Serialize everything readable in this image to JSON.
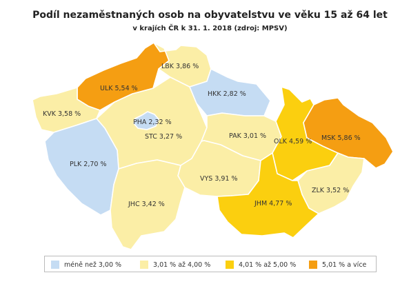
{
  "title": "Podíl nezaměstnaných osob na obyvatelstvu ve věku 15 až 64 let",
  "subtitle": "v krajích ČR k 31. 1. 2018 (zdroj: MPSV)",
  "colors": {
    "class1": "#c5dcf3",
    "class2": "#fbeea6",
    "class3": "#fbcf0f",
    "class4": "#f59e12",
    "border": "#ffffff"
  },
  "regions": [
    {
      "code": "PHA",
      "label": "PHA 2,32 %",
      "value": 2.32,
      "class": "class1"
    },
    {
      "code": "STC",
      "label": "STC 3,27 %",
      "value": 3.27,
      "class": "class2"
    },
    {
      "code": "JHC",
      "label": "JHC 3,42 %",
      "value": 3.42,
      "class": "class2"
    },
    {
      "code": "PLK",
      "label": "PLK 2,70 %",
      "value": 2.7,
      "class": "class1"
    },
    {
      "code": "KVK",
      "label": "KVK 3,58 %",
      "value": 3.58,
      "class": "class2"
    },
    {
      "code": "ULK",
      "label": "ULK 5,54 %",
      "value": 5.54,
      "class": "class4"
    },
    {
      "code": "LBK",
      "label": "LBK 3,86 %",
      "value": 3.86,
      "class": "class2"
    },
    {
      "code": "HKK",
      "label": "HKK 2,82 %",
      "value": 2.82,
      "class": "class1"
    },
    {
      "code": "PAK",
      "label": "PAK 3,01 %",
      "value": 3.01,
      "class": "class2"
    },
    {
      "code": "VYS",
      "label": "VYS 3,91 %",
      "value": 3.91,
      "class": "class2"
    },
    {
      "code": "JHM",
      "label": "JHM 4,77 %",
      "value": 4.77,
      "class": "class3"
    },
    {
      "code": "OLK",
      "label": "OLK 4,59 %",
      "value": 4.59,
      "class": "class3"
    },
    {
      "code": "ZLK",
      "label": "ZLK 3,52 %",
      "value": 3.52,
      "class": "class2"
    },
    {
      "code": "MSK",
      "label": "MSK 5,86 %",
      "value": 5.86,
      "class": "class4"
    }
  ],
  "legend": [
    {
      "label": "méně než 3,00 %",
      "class": "class1"
    },
    {
      "label": "3,01 % až 4,00 %",
      "class": "class2"
    },
    {
      "label": "4,01 % až 5,00 %",
      "class": "class3"
    },
    {
      "label": "5,01 % a více",
      "class": "class4"
    }
  ]
}
